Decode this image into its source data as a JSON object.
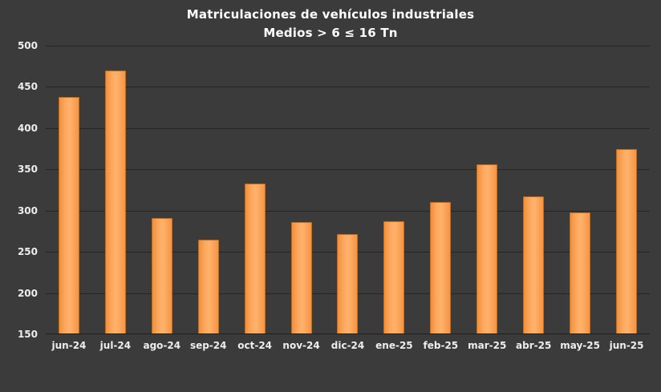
{
  "chart_data": {
    "type": "bar",
    "title": "Matriculaciones de vehículos industriales",
    "subtitle": "Medios > 6 ≤ 16 Tn",
    "categories": [
      "jun-24",
      "jul-24",
      "ago-24",
      "sep-24",
      "oct-24",
      "nov-24",
      "dic-24",
      "ene-25",
      "feb-25",
      "mar-25",
      "abr-25",
      "may-25",
      "jun-25"
    ],
    "values": [
      438,
      470,
      291,
      265,
      333,
      286,
      272,
      287,
      310,
      356,
      317,
      298,
      375
    ],
    "xlabel": "",
    "ylabel": "",
    "ylim": [
      150,
      500
    ],
    "yticks": [
      500,
      450,
      400,
      350,
      300,
      250,
      200,
      150
    ],
    "grid": "horizontal",
    "legend": "none",
    "colors": {
      "background": "#3B3B3B",
      "bar_fill": "#FCA85E",
      "bar_border": "#C96A10",
      "gridline": "#252525",
      "text": "#EDEDED",
      "title_text": "#FFFFFF"
    }
  }
}
